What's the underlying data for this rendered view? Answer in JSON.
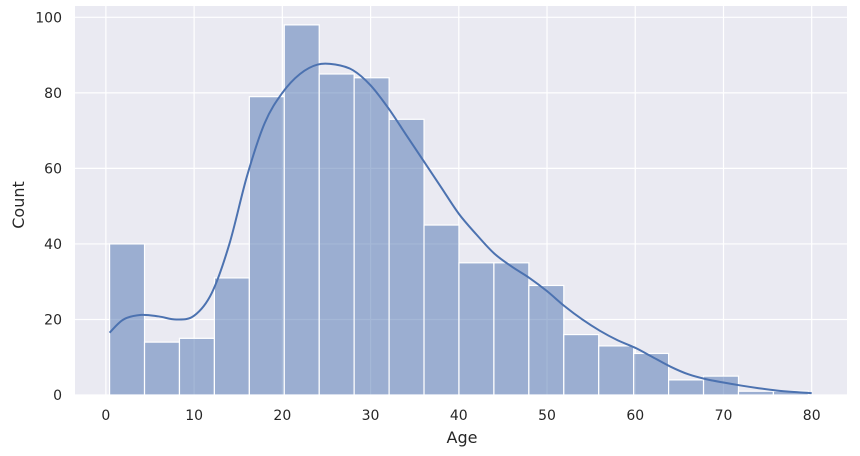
{
  "chart_data": {
    "type": "bar",
    "subtype": "histogram-with-kde",
    "title": "",
    "xlabel": "Age",
    "ylabel": "Count",
    "xlim": [
      -3.5,
      84
    ],
    "ylim": [
      0,
      103
    ],
    "grid": true,
    "legend": "none",
    "colors": {
      "background": "#eaeaf2",
      "grid": "#ffffff",
      "bar_fill": "#4c72b0",
      "bar_opacity": 0.5,
      "bar_edge": "#ffffff",
      "kde_line": "#4c72b0",
      "text": "#262626"
    },
    "x_ticks": [
      0,
      10,
      20,
      30,
      40,
      50,
      60,
      70,
      80
    ],
    "y_ticks": [
      0,
      20,
      40,
      60,
      80,
      100
    ],
    "bins": [
      {
        "x0": 0.42,
        "x1": 4.38,
        "count": 40
      },
      {
        "x0": 4.38,
        "x1": 8.34,
        "count": 14
      },
      {
        "x0": 8.34,
        "x1": 12.3,
        "count": 15
      },
      {
        "x0": 12.3,
        "x1": 16.26,
        "count": 31
      },
      {
        "x0": 16.26,
        "x1": 20.22,
        "count": 79
      },
      {
        "x0": 20.22,
        "x1": 24.18,
        "count": 98
      },
      {
        "x0": 24.18,
        "x1": 28.14,
        "count": 85
      },
      {
        "x0": 28.14,
        "x1": 32.1,
        "count": 84
      },
      {
        "x0": 32.1,
        "x1": 36.06,
        "count": 73
      },
      {
        "x0": 36.06,
        "x1": 40.02,
        "count": 45
      },
      {
        "x0": 40.02,
        "x1": 43.98,
        "count": 35
      },
      {
        "x0": 43.98,
        "x1": 47.94,
        "count": 35
      },
      {
        "x0": 47.94,
        "x1": 51.9,
        "count": 29
      },
      {
        "x0": 51.9,
        "x1": 55.86,
        "count": 16
      },
      {
        "x0": 55.86,
        "x1": 59.82,
        "count": 13
      },
      {
        "x0": 59.82,
        "x1": 63.78,
        "count": 11
      },
      {
        "x0": 63.78,
        "x1": 67.74,
        "count": 4
      },
      {
        "x0": 67.74,
        "x1": 71.7,
        "count": 5
      },
      {
        "x0": 71.7,
        "x1": 75.66,
        "count": 1
      },
      {
        "x0": 75.66,
        "x1": 79.62,
        "count": 1
      }
    ],
    "kde": {
      "x": [
        0.42,
        2,
        4,
        6,
        8,
        10,
        12,
        14,
        16,
        18,
        20,
        22,
        24,
        26,
        28,
        30,
        32,
        34,
        36,
        38,
        40,
        42,
        44,
        46,
        48,
        50,
        52,
        54,
        56,
        58,
        60,
        62,
        64,
        66,
        68,
        70,
        72,
        74,
        76,
        78,
        80
      ],
      "y": [
        16.5,
        20,
        21.2,
        20.8,
        20,
        21,
        27,
        40,
        58,
        72,
        80,
        85,
        87.5,
        87.5,
        86,
        82,
        76,
        69,
        62,
        55,
        48,
        42.5,
        37.5,
        34,
        31,
        27.5,
        23.5,
        20,
        17,
        14.5,
        12.5,
        10,
        7.5,
        5.5,
        4.2,
        3.3,
        2.5,
        1.8,
        1.2,
        0.8,
        0.5
      ]
    }
  }
}
